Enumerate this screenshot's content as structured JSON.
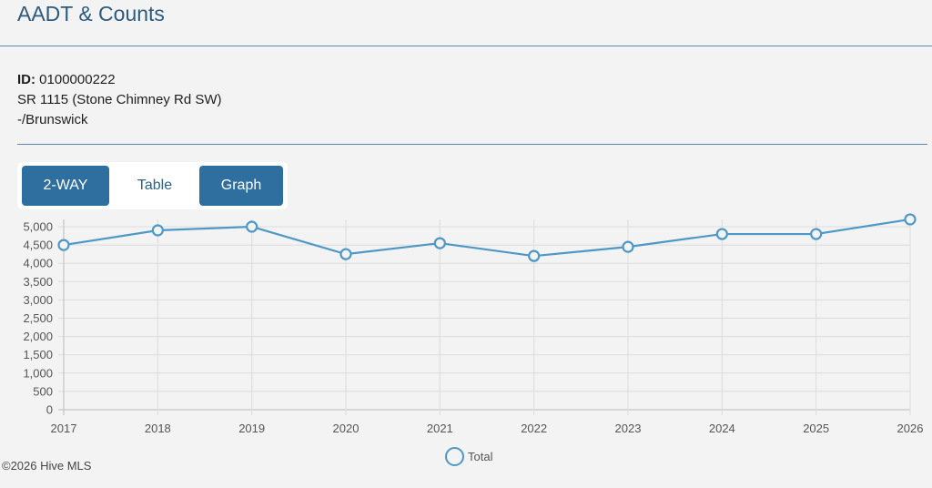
{
  "header": {
    "title": "AADT & Counts"
  },
  "info": {
    "id_label": "ID:",
    "id_value": "0100000222",
    "road": "SR 1115 (Stone Chimney Rd SW)",
    "location": "-/Brunswick"
  },
  "buttons": {
    "two_way": "2-WAY",
    "table": "Table",
    "graph": "Graph"
  },
  "colors": {
    "line": "#4d98c6",
    "button": "#2f6f9f",
    "title": "#2c5b7e"
  },
  "chart_data": {
    "type": "line",
    "title": "",
    "xlabel": "",
    "ylabel": "",
    "x": [
      "2017",
      "2018",
      "2019",
      "2020",
      "2021",
      "2022",
      "2023",
      "2024",
      "2025",
      "2026"
    ],
    "series": [
      {
        "name": "Total",
        "values": [
          4500,
          4900,
          5000,
          4250,
          4550,
          4200,
          4450,
          4800,
          4800,
          5200
        ]
      }
    ],
    "ylim": [
      0,
      5000
    ],
    "yticks": [
      "0",
      "500",
      "1,000",
      "1,500",
      "2,000",
      "2,500",
      "3,000",
      "3,500",
      "4,000",
      "4,500",
      "5,000"
    ],
    "grid": true,
    "legend": "bottom-center"
  },
  "footer": {
    "copyright": "©2026 Hive MLS"
  }
}
